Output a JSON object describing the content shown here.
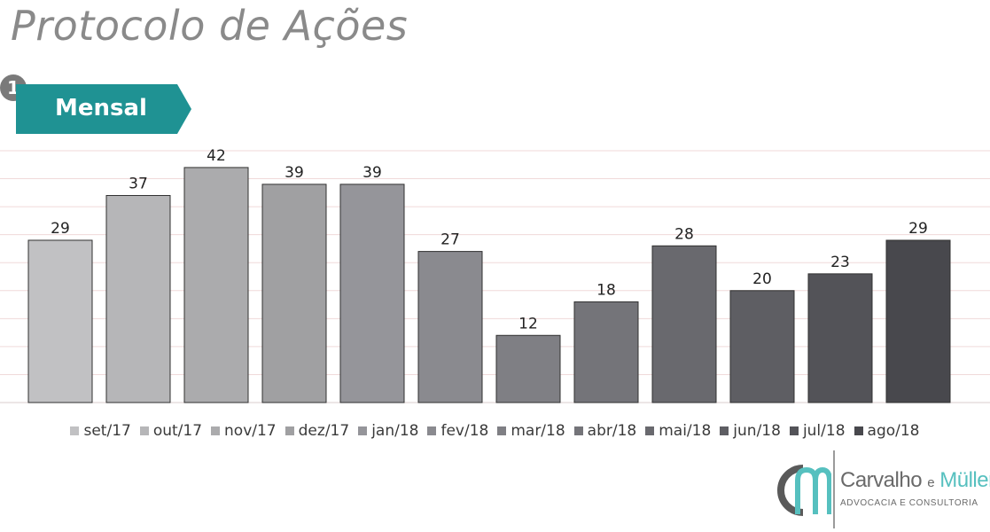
{
  "header": {
    "title": "Protocolo de Ações",
    "step_number": "1",
    "section_label": "Mensal"
  },
  "logo": {
    "name_first": "Carvalho",
    "name_joiner": "e",
    "name_last": "Müller",
    "subtitle": "ADVOCACIA E CONSULTORIA",
    "colors": {
      "primary": "#5a5a5a",
      "accent": "#56c0bf"
    }
  },
  "colors": {
    "title": "#8a8a8a",
    "tag": "#1f9293",
    "gridline": "#f0dada"
  },
  "chart_data": {
    "type": "bar",
    "title": "",
    "xlabel": "",
    "ylabel": "",
    "ylim": [
      0,
      45
    ],
    "grid": true,
    "legend_position": "bottom",
    "show_data_labels": true,
    "categories": [
      "set/17",
      "out/17",
      "nov/17",
      "dez/17",
      "jan/18",
      "fev/18",
      "mar/18",
      "abr/18",
      "mai/18",
      "jun/18",
      "jul/18",
      "ago/18"
    ],
    "values": [
      29,
      37,
      42,
      39,
      39,
      27,
      12,
      18,
      28,
      20,
      23,
      29
    ],
    "colors": [
      "#c1c1c3",
      "#b6b6b8",
      "#ababad",
      "#a0a0a2",
      "#95959a",
      "#8a8a8f",
      "#7f7f84",
      "#747479",
      "#69696e",
      "#5e5e63",
      "#535358",
      "#48484d"
    ]
  }
}
